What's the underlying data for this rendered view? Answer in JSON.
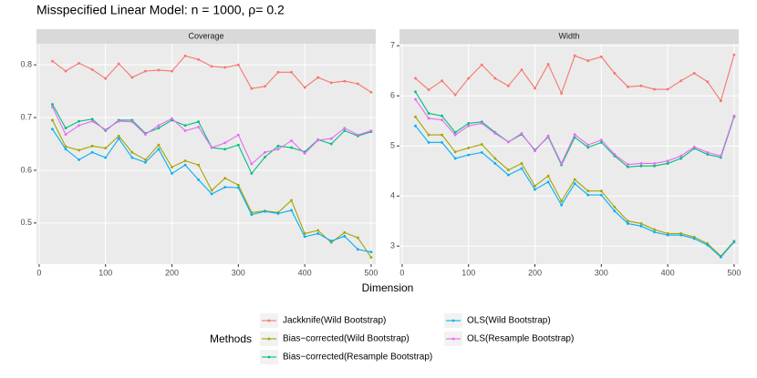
{
  "title": "Misspecified Linear Model: n = 1000, ρ= 0.2",
  "x_label": "Dimension",
  "legend_title": "Methods",
  "chart_data": [
    {
      "type": "line",
      "title": "Coverage",
      "x": [
        20,
        40,
        60,
        80,
        100,
        120,
        140,
        160,
        180,
        200,
        220,
        240,
        260,
        280,
        300,
        320,
        340,
        360,
        380,
        400,
        420,
        440,
        460,
        480,
        500
      ],
      "xlim": [
        -4,
        507
      ],
      "xticks": [
        0,
        100,
        200,
        300,
        400,
        500
      ],
      "ylim": [
        0.422,
        0.84
      ],
      "yticks": [
        0.5,
        0.6,
        0.7,
        0.8
      ],
      "grid": true,
      "series": [
        {
          "name": "Jackknife(Wild Bootstrap)",
          "color": "#F8766D",
          "values": [
            0.807,
            0.788,
            0.803,
            0.791,
            0.774,
            0.802,
            0.776,
            0.788,
            0.79,
            0.788,
            0.817,
            0.81,
            0.797,
            0.795,
            0.8,
            0.755,
            0.759,
            0.786,
            0.786,
            0.757,
            0.776,
            0.766,
            0.769,
            0.764,
            0.748
          ]
        },
        {
          "name": "Bias−corrected(Wild Bootstrap)",
          "color": "#A3A500",
          "values": [
            0.695,
            0.645,
            0.638,
            0.646,
            0.642,
            0.665,
            0.634,
            0.62,
            0.648,
            0.606,
            0.618,
            0.61,
            0.562,
            0.585,
            0.572,
            0.52,
            0.523,
            0.52,
            0.543,
            0.48,
            0.486,
            0.463,
            0.482,
            0.472,
            0.435
          ]
        },
        {
          "name": "Bias−corrected(Resample Bootstrap)",
          "color": "#00BF7D",
          "values": [
            0.725,
            0.68,
            0.693,
            0.697,
            0.675,
            0.695,
            0.695,
            0.67,
            0.68,
            0.695,
            0.685,
            0.692,
            0.643,
            0.64,
            0.648,
            0.594,
            0.625,
            0.646,
            0.643,
            0.635,
            0.658,
            0.65,
            0.675,
            0.665,
            0.673
          ]
        },
        {
          "name": "OLS(Wild Bootstrap)",
          "color": "#00B0F6",
          "values": [
            0.678,
            0.64,
            0.62,
            0.634,
            0.624,
            0.66,
            0.624,
            0.615,
            0.64,
            0.594,
            0.61,
            0.582,
            0.555,
            0.568,
            0.567,
            0.516,
            0.522,
            0.518,
            0.524,
            0.474,
            0.48,
            0.466,
            0.475,
            0.45,
            0.445
          ]
        },
        {
          "name": "OLS(Resample Bootstrap)",
          "color": "#E76BF3",
          "values": [
            0.72,
            0.668,
            0.685,
            0.693,
            0.677,
            0.693,
            0.692,
            0.668,
            0.685,
            0.698,
            0.675,
            0.682,
            0.643,
            0.652,
            0.667,
            0.612,
            0.634,
            0.64,
            0.656,
            0.632,
            0.657,
            0.66,
            0.68,
            0.667,
            0.675
          ]
        }
      ]
    },
    {
      "type": "line",
      "title": "Width",
      "x": [
        20,
        40,
        60,
        80,
        100,
        120,
        140,
        160,
        180,
        200,
        220,
        240,
        260,
        280,
        300,
        320,
        340,
        360,
        380,
        400,
        420,
        440,
        460,
        480,
        500
      ],
      "xlim": [
        -4,
        507
      ],
      "xticks": [
        0,
        100,
        200,
        300,
        400,
        500
      ],
      "ylim": [
        2.64,
        7.04
      ],
      "yticks": [
        3,
        4,
        5,
        6,
        7
      ],
      "grid": true,
      "series": [
        {
          "name": "Jackknife(Wild Bootstrap)",
          "color": "#F8766D",
          "values": [
            6.35,
            6.12,
            6.3,
            6.02,
            6.35,
            6.62,
            6.35,
            6.2,
            6.52,
            6.15,
            6.63,
            6.05,
            6.8,
            6.7,
            6.78,
            6.45,
            6.18,
            6.2,
            6.13,
            6.13,
            6.3,
            6.45,
            6.28,
            5.9,
            6.82
          ]
        },
        {
          "name": "Bias−corrected(Wild Bootstrap)",
          "color": "#A3A500",
          "values": [
            5.58,
            5.22,
            5.22,
            4.88,
            4.96,
            5.03,
            4.75,
            4.52,
            4.65,
            4.2,
            4.4,
            3.9,
            4.33,
            4.1,
            4.1,
            3.78,
            3.5,
            3.45,
            3.33,
            3.25,
            3.25,
            3.18,
            3.05,
            2.8,
            3.1
          ]
        },
        {
          "name": "Bias−corrected(Resample Bootstrap)",
          "color": "#00BF7D",
          "values": [
            6.08,
            5.65,
            5.6,
            5.27,
            5.45,
            5.48,
            5.27,
            5.08,
            5.23,
            4.92,
            5.18,
            4.62,
            5.17,
            4.97,
            5.07,
            4.8,
            4.58,
            4.6,
            4.6,
            4.65,
            4.75,
            4.95,
            4.83,
            4.77,
            5.58
          ]
        },
        {
          "name": "OLS(Wild Bootstrap)",
          "color": "#00B0F6",
          "values": [
            5.4,
            5.07,
            5.07,
            4.75,
            4.82,
            4.87,
            4.65,
            4.42,
            4.55,
            4.13,
            4.28,
            3.82,
            4.25,
            4.02,
            4.02,
            3.7,
            3.45,
            3.4,
            3.28,
            3.22,
            3.22,
            3.15,
            3.02,
            2.78,
            3.08
          ]
        },
        {
          "name": "OLS(Resample Bootstrap)",
          "color": "#E76BF3",
          "values": [
            5.93,
            5.55,
            5.52,
            5.22,
            5.4,
            5.45,
            5.25,
            5.08,
            5.25,
            4.9,
            5.2,
            4.65,
            5.23,
            5.02,
            5.12,
            4.83,
            4.63,
            4.65,
            4.65,
            4.7,
            4.8,
            4.98,
            4.87,
            4.8,
            5.6
          ]
        }
      ]
    }
  ]
}
